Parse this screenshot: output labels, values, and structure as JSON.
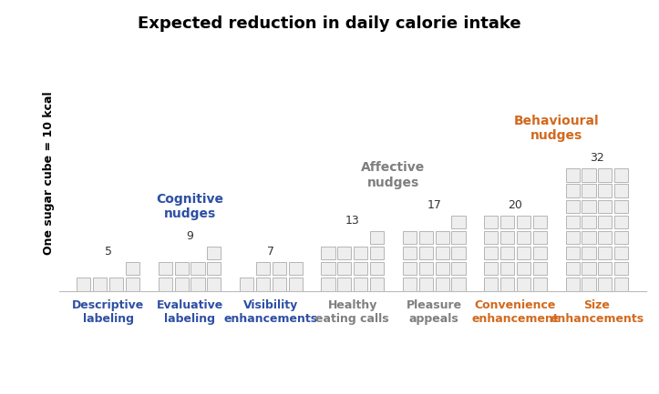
{
  "chart_data": {
    "type": "bar",
    "title": "Expected reduction in daily calorie intake",
    "y_label": "One sugar cube = 10 kcal",
    "categories": [
      "Descriptive labeling",
      "Evaluative labeling",
      "Visibility enhancements",
      "Healthy eating calls",
      "Pleasure appeals",
      "Convenience enhancement",
      "Size enhancements"
    ],
    "values": [
      5,
      9,
      7,
      13,
      17,
      20,
      32
    ],
    "color": "#eeeeee",
    "data_labels": true,
    "tick_labels": "x",
    "groups": [
      {
        "name": "Cognitive nudges",
        "color": "#2e4fa3",
        "categories": [
          "Descriptive labeling",
          "Evaluative labeling",
          "Visibility enhancements"
        ]
      },
      {
        "name": "Affective nudges",
        "color": "#7f7f7f",
        "categories": [
          "Healthy eating calls",
          "Pleasure appeals"
        ]
      },
      {
        "name": "Behavioural nudges",
        "color": "#d2691e",
        "categories": [
          "Convenience enhancement",
          "Size enhancements"
        ]
      }
    ]
  }
}
